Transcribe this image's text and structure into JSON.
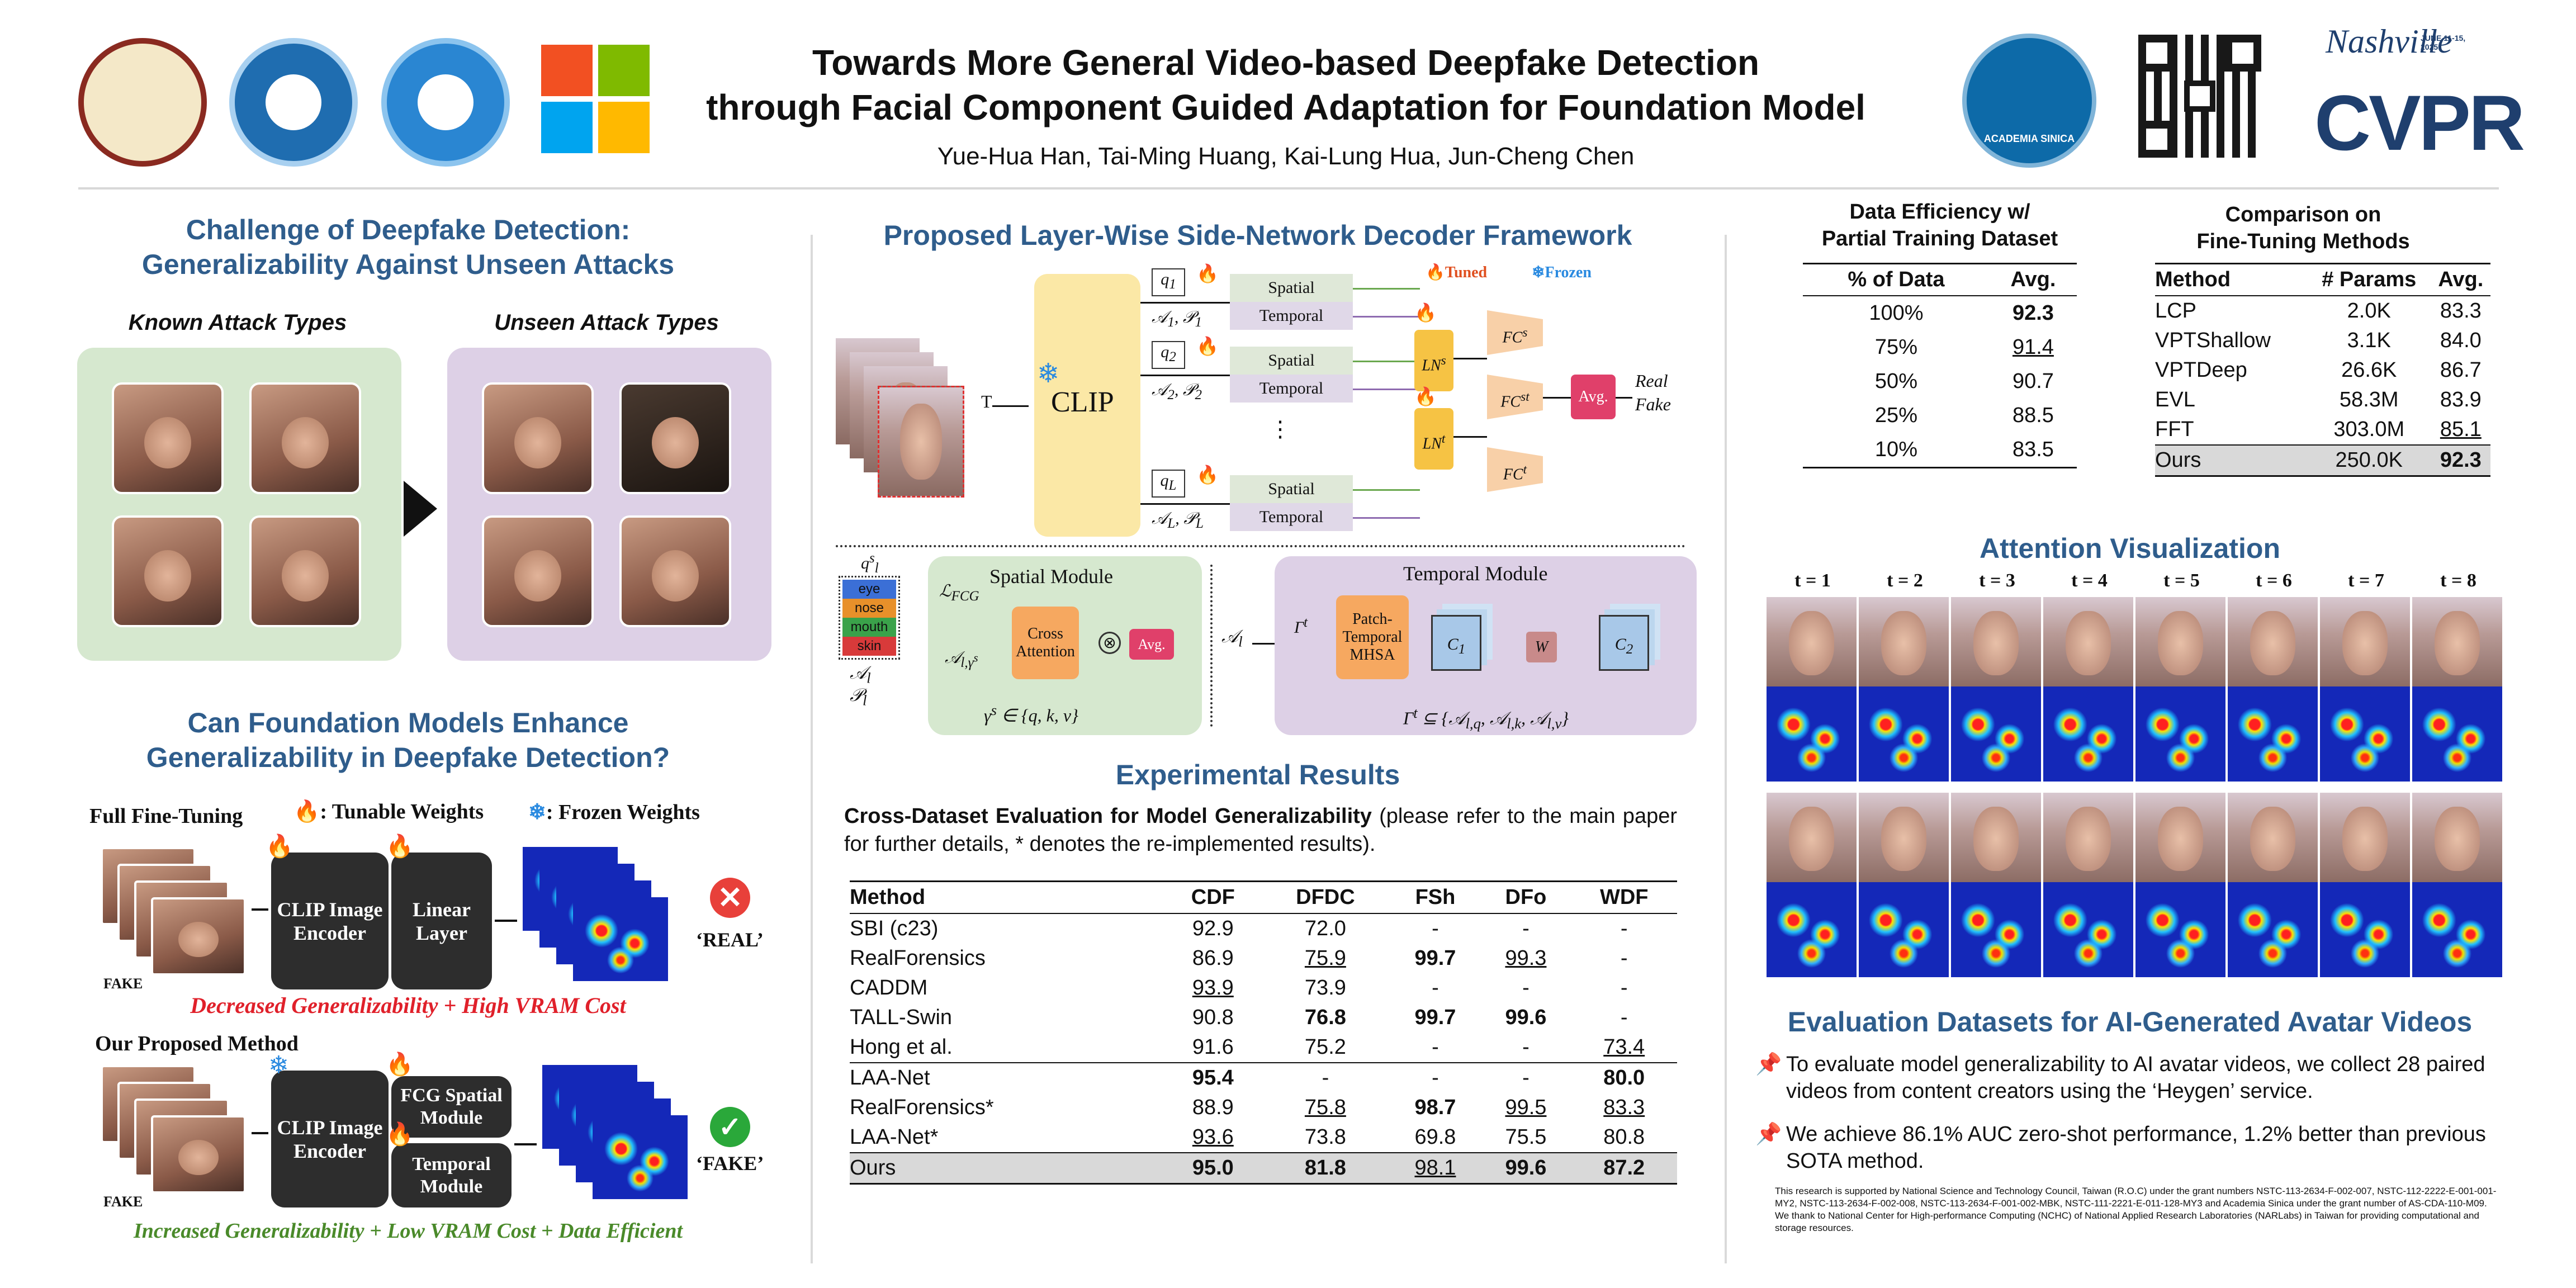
{
  "header": {
    "title_line1": "Towards More General Video-based Deepfake Detection",
    "title_line2": "through Facial Component Guided Adaptation for Foundation Model",
    "authors": "Yue-Hua Han, Tai-Ming Huang, Kai-Lung Hua, Jun-Cheng Chen",
    "cvpr_text": "CVPR",
    "cvpr_script": "Nashville",
    "cvpr_date": "JUNE 11-15, 2025",
    "sinica_text": "ACADEMIA SINICA"
  },
  "left": {
    "challenge_title_1": "Challenge of Deepfake Detection:",
    "challenge_title_2": "Generalizability Against Unseen Attacks",
    "known_label": "Known Attack Types",
    "unseen_label": "Unseen Attack Types",
    "foundation_title_1": "Can Foundation Models Enhance",
    "foundation_title_2": "Generalizability in Deepfake Detection?",
    "full_ft_label": "Full Fine-Tuning",
    "tunable_legend": ": Tunable Weights",
    "frozen_legend": ": Frozen Weights",
    "clip_encoder": "CLIP Image Encoder",
    "linear_layer": "Linear Layer",
    "fake_label": "FAKE",
    "real_output": "‘REAL’",
    "fake_output": "‘FAKE’",
    "decreased": "Decreased Generalizability + High VRAM Cost",
    "proposed_label": "Our Proposed Method",
    "fcg_spatial": "FCG Spatial Module",
    "temporal_module": "Temporal Module",
    "increased": "Increased Generalizability + Low VRAM Cost + Data Efficient"
  },
  "middle": {
    "framework_title": "Proposed Layer-Wise Side-Network Decoder Framework",
    "tuned": "Tuned",
    "frozen": "Frozen",
    "clip": "CLIP",
    "spatial": "Spatial",
    "temporal": "Temporal",
    "real": "Real",
    "fake": "Fake",
    "avg": "Avg.",
    "spatial_module": "Spatial Module",
    "temporal_module": "Temporal Module",
    "cross_attention": "Cross Attention",
    "patch_temporal": "Patch-Temporal MHSA",
    "components": [
      "eye",
      "nose",
      "mouth",
      "skin"
    ],
    "component_colors": [
      "#3b6fd6",
      "#e8902a",
      "#3aa24a",
      "#d83a3a"
    ],
    "results_title": "Experimental Results",
    "cross_title": "Cross-Dataset Evaluation for Model Generalizability",
    "cross_note": " (please refer to the main paper for further details, * denotes the re-implemented results).",
    "table_headers": [
      "Method",
      "CDF",
      "DFDC",
      "FSh",
      "DFo",
      "WDF"
    ],
    "table_rows": [
      [
        "SBI (c23)",
        "92.9",
        "72.0",
        "-",
        "-",
        "-"
      ],
      [
        "RealForensics",
        "86.9",
        "75.9",
        "99.7",
        "99.3",
        "-"
      ],
      [
        "CADDM",
        "93.9",
        "73.9",
        "-",
        "-",
        "-"
      ],
      [
        "TALL-Swin",
        "90.8",
        "76.8",
        "99.7",
        "99.6",
        "-"
      ],
      [
        "Hong et al.",
        "91.6",
        "75.2",
        "-",
        "-",
        "73.4"
      ],
      [
        "LAA-Net",
        "95.4",
        "-",
        "-",
        "-",
        "80.0"
      ],
      [
        "RealForensics*",
        "88.9",
        "75.8",
        "98.7",
        "99.5",
        "83.3"
      ],
      [
        "LAA-Net*",
        "93.6",
        "73.8",
        "69.8",
        "75.5",
        "80.8"
      ],
      [
        "Ours",
        "95.0",
        "81.8",
        "98.1",
        "99.6",
        "87.2"
      ]
    ]
  },
  "right": {
    "data_eff_title_1": "Data Efficiency w/",
    "data_eff_title_2": "Partial Training Dataset",
    "data_eff_headers": [
      "% of Data",
      "Avg."
    ],
    "data_eff_rows": [
      [
        "100%",
        "92.3"
      ],
      [
        "75%",
        "91.4"
      ],
      [
        "50%",
        "90.7"
      ],
      [
        "25%",
        "88.5"
      ],
      [
        "10%",
        "83.5"
      ]
    ],
    "ft_title_1": "Comparison on",
    "ft_title_2": "Fine-Tuning Methods",
    "ft_headers": [
      "Method",
      "# Params",
      "Avg."
    ],
    "ft_rows": [
      [
        "LCP",
        "2.0K",
        "83.3"
      ],
      [
        "VPTShallow",
        "3.1K",
        "84.0"
      ],
      [
        "VPTDeep",
        "26.6K",
        "86.7"
      ],
      [
        "EVL",
        "58.3M",
        "83.9"
      ],
      [
        "FFT",
        "303.0M",
        "85.1"
      ],
      [
        "Ours",
        "250.0K",
        "92.3"
      ]
    ],
    "attention_title": "Attention Visualization",
    "time_labels": [
      "t = 1",
      "t = 2",
      "t = 3",
      "t = 4",
      "t = 5",
      "t = 6",
      "t = 7",
      "t = 8"
    ],
    "eval_title": "Evaluation Datasets for AI-Generated Avatar Videos",
    "bullet1": "To evaluate model generalizability to AI avatar videos, we collect 28 paired videos from content creators using the ‘Heygen’ service.",
    "bullet2": "We achieve 86.1% AUC zero-shot performance, 1.2% better than previous SOTA method.",
    "ack": "This research is supported by National Science and Technology Council, Taiwan (R.O.C) under the grant numbers NSTC-113-2634-F-002-007, NSTC-112-2222-E-001-001-MY2, NSTC-113-2634-F-002-008, NSTC-113-2634-F-001-002-MBK, NSTC-111-2221-E-011-128-MY3 and Academia Sinica under the grant number of AS-CDA-110-M09. We thank to National Center for High-performance Computing (NCHC) of National Applied Research Laboratories (NARLabs) in Taiwan for providing computational and storage resources."
  },
  "colors": {
    "accent": "#2f5d8c",
    "green_panel": "#d6e8cf",
    "purple_panel": "#ddd0e6",
    "red_text": "#e0202a",
    "green_text": "#4a8a2a"
  }
}
